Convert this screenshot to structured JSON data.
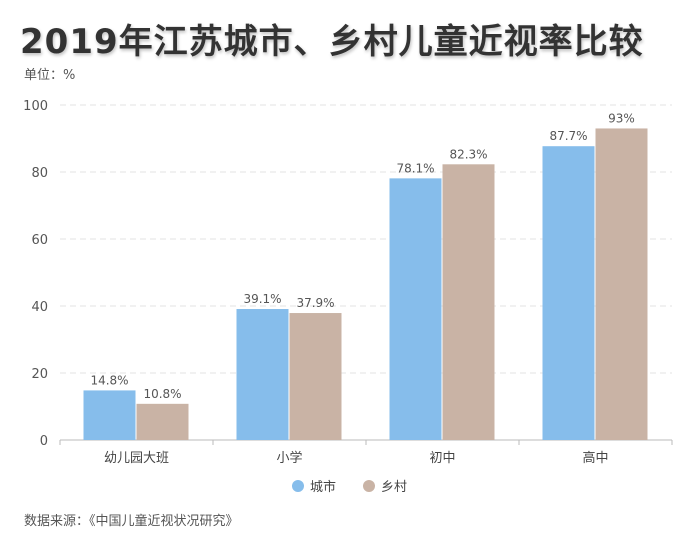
{
  "page": {
    "title": "2019年江苏城市、乡村儿童近视率比较",
    "unit_label": "单位：%",
    "source_label": "数据来源：《中国儿童近视状况研究》"
  },
  "colors": {
    "city": "#86bdeb",
    "rural": "#c9b3a5",
    "grid": "#e3e3e3",
    "axis": "#bbbbbb"
  },
  "chart_data": {
    "type": "bar",
    "title": "2019年江苏城市、乡村儿童近视率比较",
    "ylabel": "单位：%",
    "xlabel": "",
    "categories": [
      "幼儿园大班",
      "小学",
      "初中",
      "高中"
    ],
    "series": [
      {
        "name": "城市",
        "values": [
          14.8,
          39.1,
          78.1,
          87.7
        ],
        "labels": [
          "14.8%",
          "39.1%",
          "78.1%",
          "87.7%"
        ]
      },
      {
        "name": "乡村",
        "values": [
          10.8,
          37.9,
          82.3,
          93
        ],
        "labels": [
          "10.8%",
          "37.9%",
          "82.3%",
          "93%"
        ]
      }
    ],
    "ylim": [
      0,
      100
    ],
    "yticks": [
      0,
      20,
      40,
      60,
      80,
      100
    ],
    "ytick_labels": [
      "0",
      "20",
      "40",
      "60",
      "80",
      "100"
    ],
    "grid": true,
    "legend_position": "bottom-center"
  }
}
